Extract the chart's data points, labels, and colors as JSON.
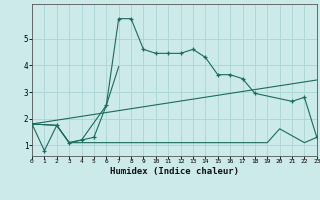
{
  "xlabel": "Humidex (Indice chaleur)",
  "bg": "#cceaea",
  "grid_color": "#aad4d4",
  "lc": "#1a6b5a",
  "xlim": [
    0,
    23
  ],
  "ylim": [
    0.6,
    6.3
  ],
  "yticks": [
    1,
    2,
    3,
    4,
    5
  ],
  "line1_x": [
    0,
    1,
    2,
    3,
    4,
    5,
    6,
    7,
    8,
    9,
    10,
    11,
    12,
    13,
    14,
    15,
    16,
    17,
    18,
    21,
    22,
    23
  ],
  "line1_y": [
    1.8,
    0.8,
    1.75,
    1.1,
    1.2,
    1.3,
    2.5,
    5.75,
    5.75,
    4.6,
    4.45,
    4.45,
    4.45,
    4.6,
    4.3,
    3.65,
    3.65,
    3.5,
    2.95,
    2.65,
    2.8,
    1.3
  ],
  "line2_x": [
    0,
    2,
    3,
    4,
    6,
    7
  ],
  "line2_y": [
    1.8,
    1.75,
    1.1,
    1.2,
    2.5,
    3.95
  ],
  "line3_x": [
    0,
    23
  ],
  "line3_y": [
    1.8,
    3.45
  ],
  "line4_x": [
    0,
    2,
    3,
    9,
    10,
    11,
    12,
    13,
    14,
    15,
    16,
    17,
    18,
    19,
    20,
    22,
    23
  ],
  "line4_y": [
    1.8,
    1.75,
    1.1,
    1.1,
    1.1,
    1.1,
    1.1,
    1.1,
    1.1,
    1.1,
    1.1,
    1.1,
    1.1,
    1.1,
    1.62,
    1.1,
    1.3
  ]
}
